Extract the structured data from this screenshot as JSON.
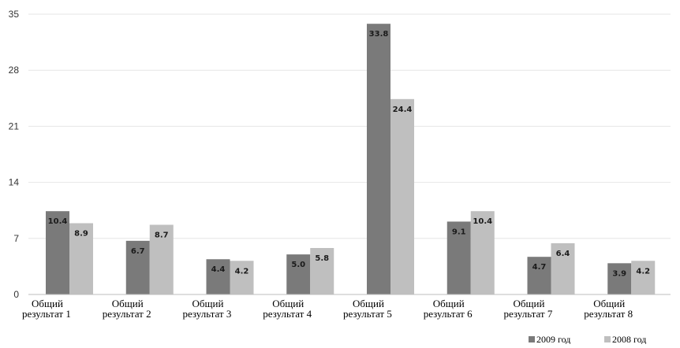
{
  "chart_data": {
    "type": "bar",
    "categories": [
      [
        "Общий",
        "результат 1"
      ],
      [
        "Общий",
        "результат 2"
      ],
      [
        "Общий",
        "результат 3"
      ],
      [
        "Общий",
        "результат 4"
      ],
      [
        "Общий",
        "результат 5"
      ],
      [
        "Общий",
        "результат 6"
      ],
      [
        "Общий",
        "результат 7"
      ],
      [
        "Общий",
        "результат 8"
      ]
    ],
    "series": [
      {
        "name": "2009 год",
        "color": "#7a7a7a",
        "values": [
          10.4,
          6.7,
          4.4,
          5.0,
          33.8,
          9.1,
          4.7,
          3.9
        ],
        "labels": [
          "10.4",
          "6.7",
          "4.4",
          "5.0",
          "33.8",
          "9.1",
          "4.7",
          "3.9"
        ]
      },
      {
        "name": "2008 год",
        "color": "#bfbfbf",
        "values": [
          8.9,
          8.7,
          4.2,
          5.8,
          24.4,
          10.4,
          6.4,
          4.2
        ],
        "labels": [
          "8.9",
          "8.7",
          "4.2",
          "5.8",
          "24.4",
          "10.4",
          "6.4",
          "4.2"
        ]
      }
    ],
    "yticks": [
      "0",
      "7",
      "14",
      "21",
      "28",
      "35"
    ],
    "ylim": [
      0,
      35
    ],
    "grid": true,
    "legend": "bottom-right"
  }
}
